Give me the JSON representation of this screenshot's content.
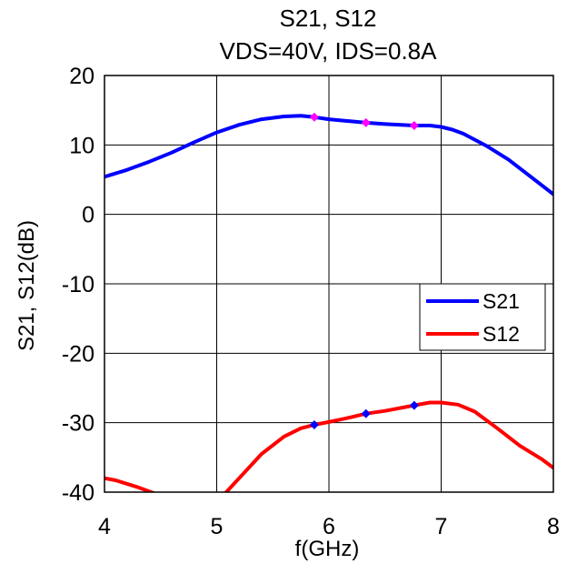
{
  "chart_data": {
    "type": "line",
    "title": [
      "S21, S12",
      "VDS=40V, IDS=0.8A"
    ],
    "xlabel": "f(GHz)",
    "ylabel": "S21, S12(dB)",
    "xlim": [
      4,
      8
    ],
    "ylim": [
      -40,
      20
    ],
    "xticks": [
      "4",
      "5",
      "6",
      "7",
      "8"
    ],
    "yticks": [
      "20",
      "10",
      "0",
      "-10",
      "-20",
      "-30",
      "-40"
    ],
    "grid": true,
    "legend_position": "right",
    "series": [
      {
        "name": "S21",
        "color": "#0000ff",
        "x": [
          4.0,
          4.2,
          4.4,
          4.6,
          4.8,
          5.0,
          5.2,
          5.4,
          5.6,
          5.75,
          5.87,
          6.0,
          6.2,
          6.33,
          6.5,
          6.76,
          6.9,
          7.0,
          7.1,
          7.2,
          7.4,
          7.6,
          7.8,
          8.0
        ],
        "y": [
          5.4,
          6.4,
          7.6,
          8.9,
          10.4,
          11.8,
          12.9,
          13.7,
          14.1,
          14.2,
          14.0,
          13.7,
          13.4,
          13.2,
          13.0,
          12.8,
          12.8,
          12.6,
          12.2,
          11.6,
          9.9,
          7.9,
          5.4,
          2.9
        ],
        "markers": {
          "x": [
            5.87,
            6.33,
            6.76
          ],
          "y": [
            14.0,
            13.2,
            12.8
          ],
          "color": "#ff00ff"
        }
      },
      {
        "name": "S12",
        "color": "#ff0000",
        "x": [
          4.0,
          4.1,
          4.3,
          4.5,
          4.7,
          4.9,
          5.05,
          5.2,
          5.4,
          5.6,
          5.75,
          5.87,
          6.0,
          6.2,
          6.33,
          6.5,
          6.76,
          6.9,
          7.0,
          7.15,
          7.3,
          7.5,
          7.7,
          7.9,
          8.0
        ],
        "y": [
          -38.0,
          -38.3,
          -39.3,
          -40.5,
          -42.0,
          -42.0,
          -40.6,
          -38.0,
          -34.5,
          -32.0,
          -30.8,
          -30.3,
          -29.9,
          -29.2,
          -28.7,
          -28.3,
          -27.5,
          -27.1,
          -27.1,
          -27.4,
          -28.4,
          -30.8,
          -33.3,
          -35.3,
          -36.5
        ],
        "markers": {
          "x": [
            5.87,
            6.33,
            6.76
          ],
          "y": [
            -30.3,
            -28.7,
            -27.5
          ],
          "color": "#0000ff"
        }
      }
    ]
  }
}
